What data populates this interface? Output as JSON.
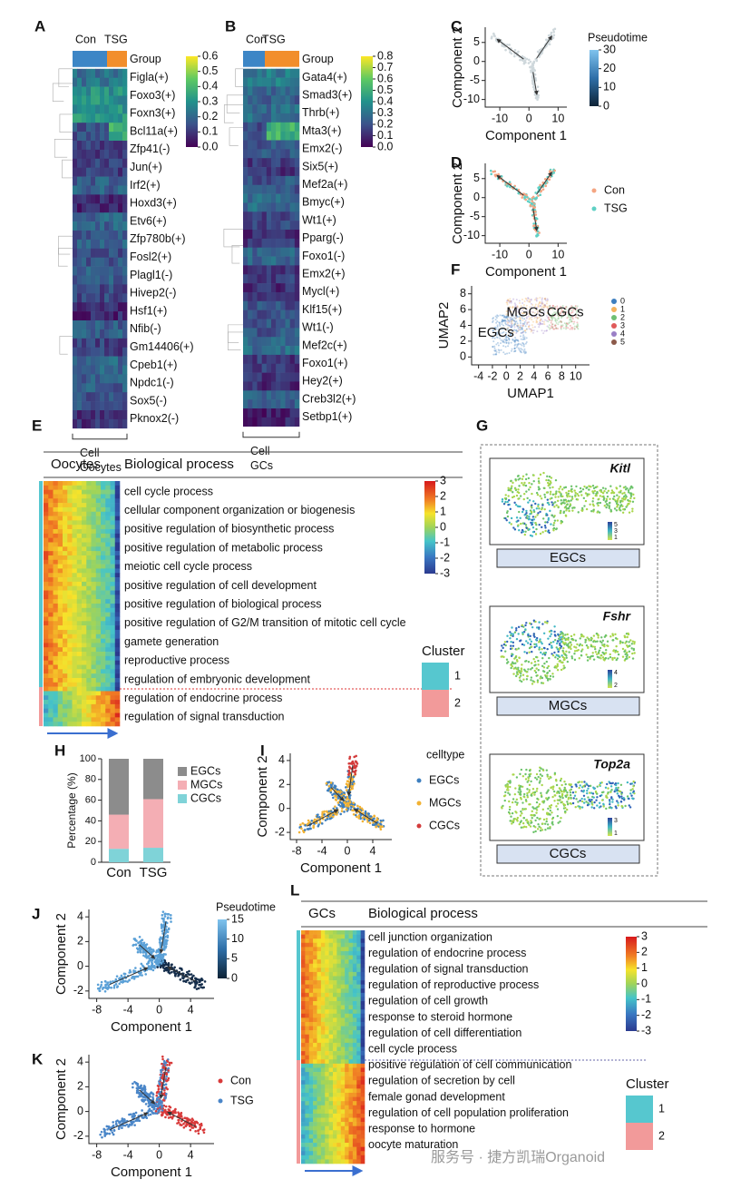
{
  "panel_labels": [
    "A",
    "B",
    "C",
    "D",
    "E",
    "F",
    "G",
    "H",
    "I",
    "J",
    "K",
    "L"
  ],
  "A": {
    "groups": [
      "Con",
      "TSG"
    ],
    "rows": [
      "Group",
      "Figla(+)",
      "Foxo3(+)",
      "Foxn3(+)",
      "Bcl11a(+)",
      "Zfp41(-)",
      "Jun(+)",
      "Irf2(+)",
      "Hoxd3(+)",
      "Etv6(+)",
      "Zfp780b(+)",
      "Fosl2(+)",
      "Plagl1(-)",
      "Hivep2(-)",
      "Hsf1(+)",
      "Nfib(-)",
      "Gm14406(+)",
      "Cpeb1(+)",
      "Npdc1(-)",
      "Sox5(-)",
      "Pknox2(-)"
    ],
    "colorbar": [
      0.6,
      0.5,
      0.4,
      0.3,
      0.2,
      0.1,
      {
        "value": 0,
        "label": "0.0"
      }
    ],
    "cell": "Cell",
    "cell_type": "Oocytes"
  },
  "B": {
    "groups": [
      "Con",
      "TSG"
    ],
    "rows": [
      "Group",
      "Gata4(+)",
      "Smad3(+)",
      "Thrb(+)",
      "Mta3(+)",
      "Emx2(-)",
      "Six5(+)",
      "Mef2a(+)",
      "Bmyc(+)",
      "Wt1(+)",
      "Pparg(-)",
      "Foxo1(-)",
      "Emx2(+)",
      "Mycl(+)",
      "Klf15(+)",
      "Wt1(-)",
      "Mef2c(+)",
      "Foxo1(+)",
      "Hey2(+)",
      "Creb3l2(+)",
      "Setbp1(+)"
    ],
    "colorbar": [
      0.8,
      0.7,
      0.6,
      0.5,
      0.4,
      0.3,
      0.2,
      0.1,
      {
        "value": 0,
        "label": "0.0"
      }
    ],
    "cell": "Cell",
    "cell_type": "GCs"
  },
  "C": {
    "xlabel": "Component 1",
    "ylabel": "Component 2",
    "xlim": [
      -15,
      13
    ],
    "ylim": [
      -12,
      9
    ],
    "xticks": [
      -10,
      0,
      10
    ],
    "yticks": [
      5,
      0,
      -5,
      -10
    ],
    "colorbar_title": "Pseudotime",
    "colorbar": [
      30,
      20,
      10,
      0
    ]
  },
  "D": {
    "xlabel": "Component 1",
    "ylabel": "Component 2",
    "xlim": [
      -15,
      13
    ],
    "ylim": [
      -12,
      9
    ],
    "xticks": [
      -10,
      0,
      10
    ],
    "yticks": [
      5,
      0,
      -5,
      -10
    ],
    "legend": [
      "Con",
      "TSG"
    ]
  },
  "F": {
    "xlabel": "UMAP1",
    "ylabel": "UMAP2",
    "xlim": [
      -5,
      12
    ],
    "ylim": [
      -1,
      9
    ],
    "xticks": [
      -4,
      -2,
      0,
      2,
      4,
      6,
      8,
      10
    ],
    "yticks": [
      0,
      2,
      4,
      6,
      8
    ],
    "cluster_labels": [
      "EGCs",
      "MGCs",
      "CGCs"
    ],
    "legend": [
      "0",
      "1",
      "2",
      "3",
      "4",
      "5"
    ]
  },
  "E": {
    "header": [
      "Oocytes",
      "Biological process"
    ],
    "terms": [
      "cell cycle process",
      "cellular component organization or biogenesis",
      "positive regulation of biosynthetic process",
      "positive regulation of metabolic process",
      "meiotic cell cycle process",
      "positive regulation of cell development",
      "positive regulation of biological process",
      "positive regulation of G2/M transition of mitotic cell cycle",
      "gamete generation",
      "reproductive process",
      "regulation of embryonic development",
      "regulation of endocrine process",
      "regulation of signal transduction"
    ],
    "colorbar": [
      3,
      2,
      1,
      0,
      -1,
      -2,
      -3
    ],
    "cluster_title": "Cluster",
    "clusters": [
      "1",
      "2"
    ]
  },
  "G": {
    "panels": [
      {
        "gene": "Kitl",
        "legend": [
          "5",
          "3",
          "1"
        ],
        "label": "EGCs"
      },
      {
        "gene": "Fshr",
        "legend": [
          "4",
          "2"
        ],
        "label": "MGCs"
      },
      {
        "gene": "Top2a",
        "legend": [
          "3",
          "1"
        ],
        "label": "CGCs"
      }
    ]
  },
  "H": {
    "chart_data": {
      "type": "bar",
      "stacked": true,
      "ylabel": "Percentage (%)",
      "categories": [
        "Con",
        "TSG"
      ],
      "series": [
        {
          "name": "CGCs",
          "color": "#7fd3d8",
          "values": [
            13,
            14
          ]
        },
        {
          "name": "MGCs",
          "color": "#f4aeb4",
          "values": [
            33,
            47
          ]
        },
        {
          "name": "EGCs",
          "color": "#8c8c8c",
          "values": [
            54,
            39
          ]
        }
      ],
      "ylim": [
        0,
        100
      ],
      "yticks": [
        0,
        20,
        40,
        60,
        80,
        100
      ]
    }
  },
  "I": {
    "xlabel": "Component 1",
    "ylabel": "Component 2",
    "xlim": [
      -9,
      7
    ],
    "ylim": [
      -2.6,
      4.6
    ],
    "xticks": [
      -8,
      -4,
      0,
      4
    ],
    "yticks": [
      -2,
      0,
      2,
      4
    ],
    "legend_title": "celltype",
    "legend": [
      "EGCs",
      "MGCs",
      "CGCs"
    ]
  },
  "J": {
    "xlabel": "Component 1",
    "ylabel": "Component 2",
    "xlim": [
      -9,
      7
    ],
    "ylim": [
      -2.6,
      4.6
    ],
    "xticks": [
      -8,
      -4,
      0,
      4
    ],
    "yticks": [
      -2,
      0,
      2,
      4
    ],
    "colorbar_title": "Pseudotime",
    "colorbar": [
      15,
      10,
      5,
      0
    ]
  },
  "K": {
    "xlabel": "Component 1",
    "ylabel": "Component 2",
    "xlim": [
      -9,
      7
    ],
    "ylim": [
      -2.6,
      4.6
    ],
    "xticks": [
      -8,
      -4,
      0,
      4
    ],
    "yticks": [
      -2,
      0,
      2,
      4
    ],
    "legend": [
      "Con",
      "TSG"
    ]
  },
  "L": {
    "header": [
      "GCs",
      "Biological process"
    ],
    "terms": [
      "cell junction organization",
      "regulation of endocrine process",
      "regulation of signal transduction",
      "regulation of reproductive process",
      "regulation of cell growth",
      "response to steroid hormone",
      "regulation of cell differentiation",
      "cell cycle process",
      "positive regulation of cell communication",
      "regulation of secretion by cell",
      "female gonad development",
      "regulation of cell population proliferation",
      "response to hormone",
      "oocyte maturation"
    ],
    "colorbar": [
      3,
      2,
      1,
      0,
      -1,
      -2,
      -3
    ],
    "cluster_title": "Cluster",
    "clusters": [
      "1",
      "2"
    ]
  },
  "watermark": "服务号 · 捷方凯瑞Organoid"
}
